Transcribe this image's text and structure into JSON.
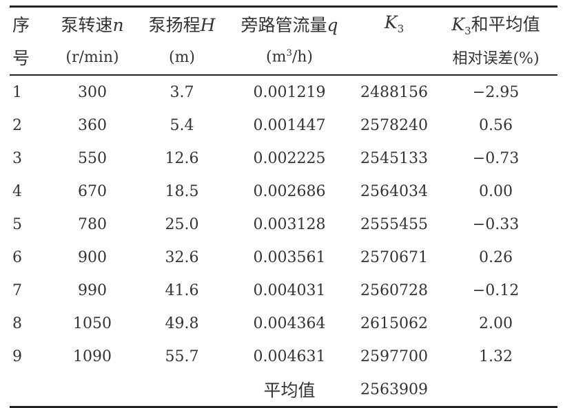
{
  "table": {
    "header_row1": {
      "col0": "序",
      "col1_text": "泵转速",
      "col1_var": "n",
      "col2_text": "泵扬程",
      "col2_var": "H",
      "col3_text": "旁路管流量",
      "col3_var": "q",
      "col4_var": "K",
      "col4_sub": "3",
      "col5_var": "K",
      "col5_sub": "3",
      "col5_text": "和平均值"
    },
    "header_row2": {
      "col0": "号",
      "col1": "(r/min)",
      "col2": "(m)",
      "col3_pre": "(m",
      "col3_sup": "3",
      "col3_post": "/h)",
      "col5": "相对误差(%)"
    },
    "rows": [
      [
        "1",
        "300",
        "3.7",
        "0.001219",
        "2488156",
        "−2.95"
      ],
      [
        "2",
        "360",
        "5.4",
        "0.001447",
        "2578240",
        "0.56"
      ],
      [
        "3",
        "550",
        "12.6",
        "0.002225",
        "2545133",
        "−0.73"
      ],
      [
        "4",
        "670",
        "18.5",
        "0.002686",
        "2564034",
        "0.00"
      ],
      [
        "5",
        "780",
        "25.0",
        "0.003128",
        "2555455",
        "−0.33"
      ],
      [
        "6",
        "900",
        "32.6",
        "0.003561",
        "2570671",
        "0.26"
      ],
      [
        "7",
        "990",
        "41.6",
        "0.004031",
        "2560728",
        "−0.12"
      ],
      [
        "8",
        "1050",
        "49.8",
        "0.004364",
        "2615062",
        "2.00"
      ],
      [
        "9",
        "1090",
        "55.7",
        "0.004631",
        "2597700",
        "1.32"
      ]
    ],
    "average": {
      "label": "平均值",
      "value": "2563909"
    }
  }
}
